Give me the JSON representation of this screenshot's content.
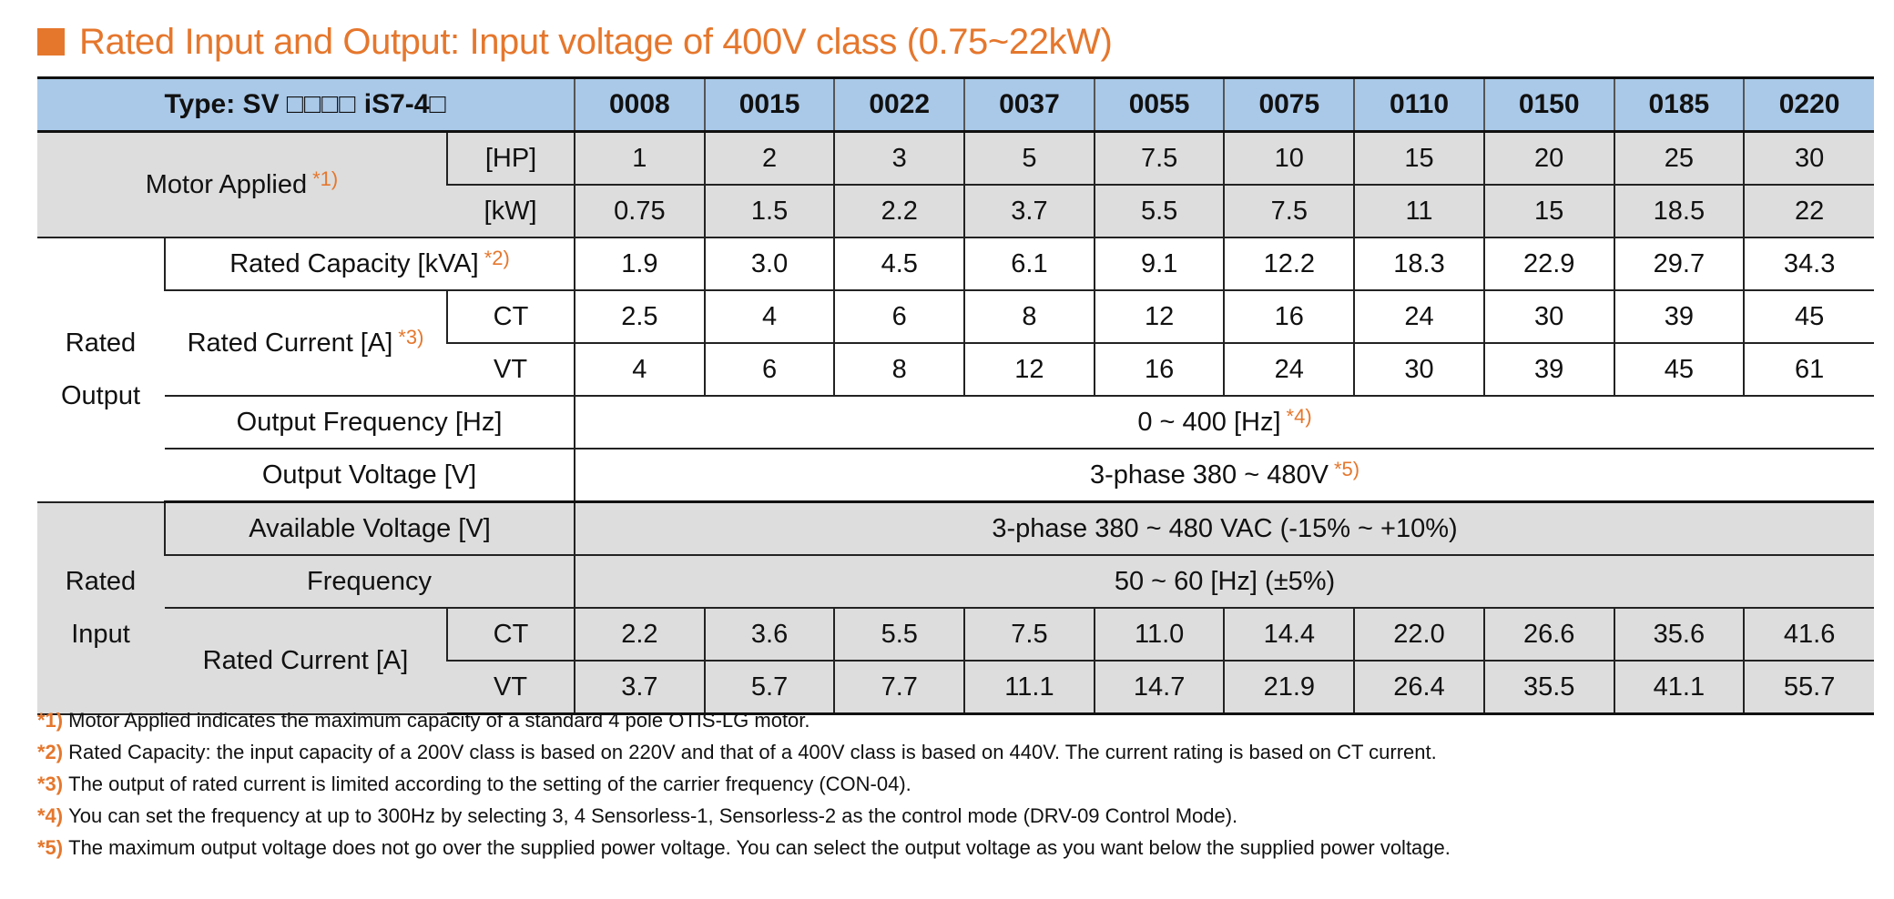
{
  "title": "Rated Input and Output: Input voltage of 400V class (0.75~22kW)",
  "header": {
    "type_prefix": "Type: SV",
    "type_boxes": "□□□□",
    "type_suffix": " iS7-4",
    "type_end_box": "□",
    "codes": [
      "0008",
      "0015",
      "0022",
      "0037",
      "0055",
      "0075",
      "0110",
      "0150",
      "0185",
      "0220"
    ]
  },
  "motor_applied": {
    "label": "Motor Applied",
    "note": "*1)",
    "hp_unit": "[HP]",
    "hp_values": [
      "1",
      "2",
      "3",
      "5",
      "7.5",
      "10",
      "15",
      "20",
      "25",
      "30"
    ],
    "kw_unit": "[kW]",
    "kw_values": [
      "0.75",
      "1.5",
      "2.2",
      "3.7",
      "5.5",
      "7.5",
      "11",
      "15",
      "18.5",
      "22"
    ]
  },
  "rated_output": {
    "label_line1": "Rated",
    "label_line2": "Output",
    "capacity_label": "Rated Capacity [kVA]",
    "capacity_note": "*2)",
    "capacity_values": [
      "1.9",
      "3.0",
      "4.5",
      "6.1",
      "9.1",
      "12.2",
      "18.3",
      "22.9",
      "29.7",
      "34.3"
    ],
    "current_label": "Rated Current [A]",
    "current_note": "*3)",
    "ct_label": "CT",
    "ct_values": [
      "2.5",
      "4",
      "6",
      "8",
      "12",
      "16",
      "24",
      "30",
      "39",
      "45"
    ],
    "vt_label": "VT",
    "vt_values": [
      "4",
      "6",
      "8",
      "12",
      "16",
      "24",
      "30",
      "39",
      "45",
      "61"
    ],
    "freq_label": "Output Frequency [Hz]",
    "freq_value": "0 ~ 400 [Hz]",
    "freq_note": "*4)",
    "voltage_label": "Output Voltage [V]",
    "voltage_value": "3-phase 380 ~ 480V",
    "voltage_note": "*5)"
  },
  "rated_input": {
    "label_line1": "Rated",
    "label_line2": "Input",
    "avail_label": "Available Voltage [V]",
    "avail_value": "3-phase 380 ~ 480 VAC (-15% ~  +10%)",
    "freq_label": "Frequency",
    "freq_value": "50 ~ 60 [Hz] (±5%)",
    "current_label": "Rated Current [A]",
    "ct_label": "CT",
    "ct_values": [
      "2.2",
      "3.6",
      "5.5",
      "7.5",
      "11.0",
      "14.4",
      "22.0",
      "26.6",
      "35.6",
      "41.6"
    ],
    "vt_label": "VT",
    "vt_values": [
      "3.7",
      "5.7",
      "7.7",
      "11.1",
      "14.7",
      "21.9",
      "26.4",
      "35.5",
      "41.1",
      "55.7"
    ]
  },
  "footnotes": [
    {
      "label": "*1)",
      "text": "Motor Applied indicates the maximum capacity of a standard 4 pole OTIS-LG motor."
    },
    {
      "label": "*2)",
      "text": "Rated Capacity: the input capacity of a 200V class is based on 220V and that of a 400V class is based on 440V. The current rating is based on CT current."
    },
    {
      "label": "*3)",
      "text": "The output of rated current is limited according to the setting of the carrier frequency (CON-04)."
    },
    {
      "label": "*4)",
      "text": "You can set the frequency at up to 300Hz by selecting 3, 4 Sensorless-1, Sensorless-2 as the control mode (DRV-09 Control Mode)."
    },
    {
      "label": "*5)",
      "text": "The maximum output voltage does not go over the supplied power voltage. You can select the output voltage as you want below the supplied power voltage."
    }
  ],
  "colors": {
    "accent": "#e5772d",
    "header_bg": "#aac9e9",
    "gray_bg": "#dddddd"
  }
}
